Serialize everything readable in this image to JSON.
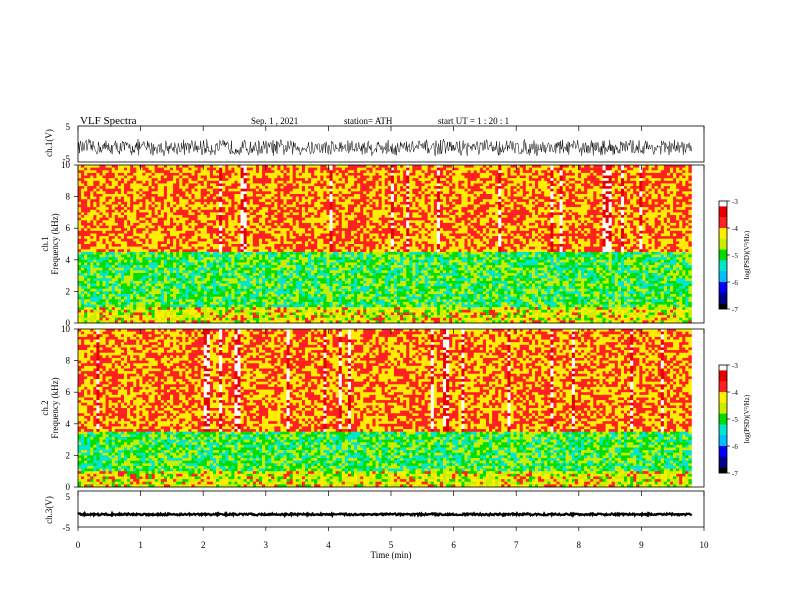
{
  "header": {
    "title": "VLF  Spectra",
    "date": "Sep. 1 , 2021",
    "station": "station= ATH",
    "start": "start  UT  =    1  : 20 : 1"
  },
  "chart_data": [
    {
      "type": "line",
      "name": "ch1-waveform",
      "ylabel": "ch.1(V)",
      "ytick_labels": [
        "5",
        "-5"
      ],
      "ylim": [
        -5,
        5
      ],
      "xlim": [
        0,
        10
      ],
      "trace": {
        "mean": -1.0,
        "amplitude": 2.5,
        "t_end": 9.8
      },
      "grid": false
    },
    {
      "type": "heatmap",
      "name": "ch1-spectrogram",
      "ylabel": "ch.1\nFrequency  (kHz)",
      "ylim": [
        0,
        10
      ],
      "yticks": [
        0,
        2,
        4,
        6,
        8,
        10
      ],
      "xlim": [
        0,
        10
      ],
      "t_end": 9.8,
      "colorbar": {
        "label": "log(PSD)(V²/Hz)",
        "min": -7,
        "max": -3,
        "ticks": [
          -3,
          -4,
          -5,
          -6,
          -7
        ]
      },
      "dominant_level_high_freq": -4.0,
      "low_freq_band_khz": [
        0,
        4.5
      ],
      "low_freq_level": -5.0
    },
    {
      "type": "heatmap",
      "name": "ch2-spectrogram",
      "ylabel": "ch.2\nFrequency  (kHz)",
      "ylim": [
        0,
        10
      ],
      "yticks": [
        0,
        2,
        4,
        6,
        8,
        10
      ],
      "xlim": [
        0,
        10
      ],
      "t_end": 9.8,
      "colorbar": {
        "label": "log(PSD)(V²/Hz)",
        "min": -7,
        "max": -3,
        "ticks": [
          -3,
          -4,
          -5,
          -6,
          -7
        ]
      },
      "dominant_level_high_freq": -4.0,
      "low_freq_band_khz": [
        0,
        3.5
      ],
      "low_freq_level": -5.0
    },
    {
      "type": "line",
      "name": "ch3-waveform",
      "ylabel": "ch.3(V)",
      "ytick_labels": [
        "5",
        "-5"
      ],
      "ylim": [
        -5,
        5
      ],
      "xlim": [
        0,
        10
      ],
      "trace": {
        "mean": -1.5,
        "amplitude": 0.3,
        "t_end": 9.8
      },
      "xlabel": "Time  (min)",
      "xticks": [
        0,
        1,
        2,
        3,
        4,
        5,
        6,
        7,
        8,
        9,
        10
      ],
      "grid": false
    }
  ],
  "colors": {
    "axis": "#000000",
    "trace": "#000000",
    "colormap": [
      "#000000",
      "#00008b",
      "#0000ff",
      "#00bfff",
      "#00e5cc",
      "#00dd00",
      "#c8ee00",
      "#ffee00",
      "#ff2020",
      "#e80000",
      "#ffffff"
    ]
  }
}
